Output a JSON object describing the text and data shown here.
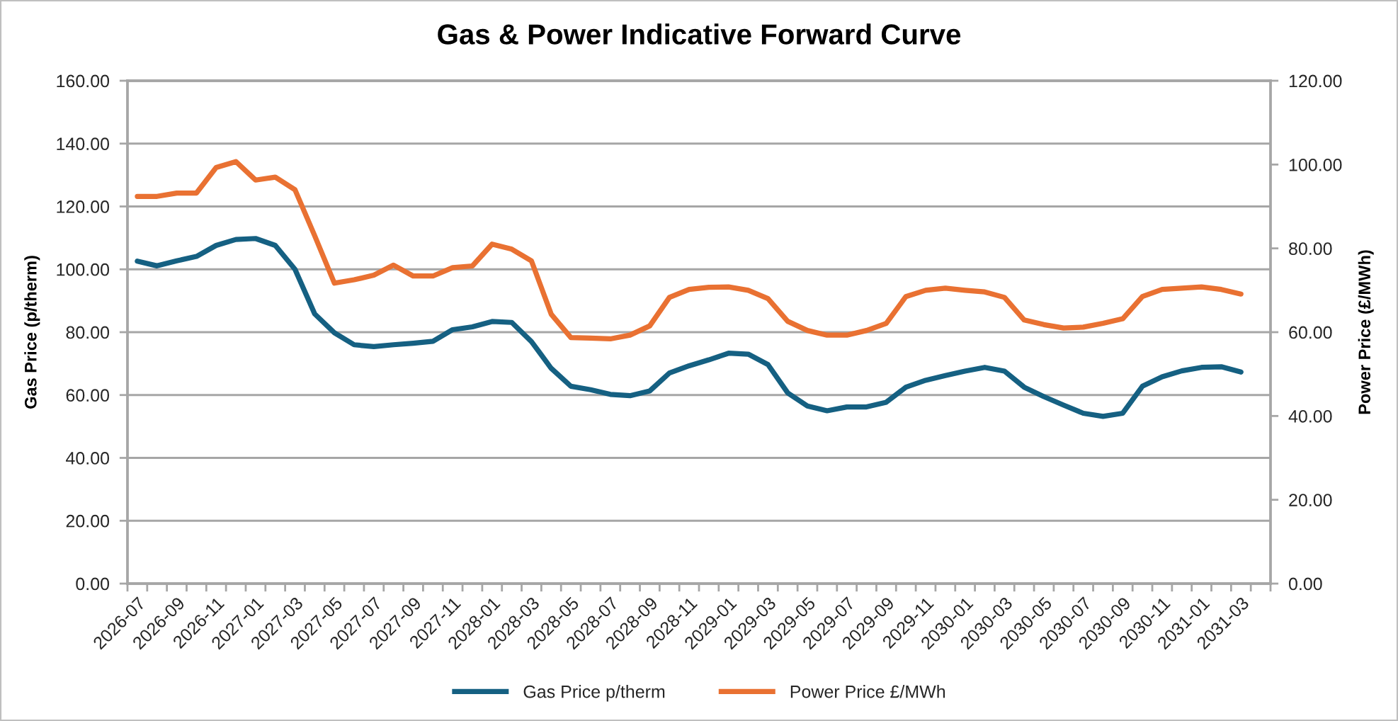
{
  "chart_data": {
    "type": "line",
    "title": "Gas & Power Indicative Forward Curve",
    "ylabel": "Gas Price (p/therm)",
    "y2label": "Power Price (£/MWh)",
    "categories": [
      "2026-07",
      null,
      "2026-09",
      null,
      "2026-11",
      null,
      "2027-01",
      null,
      "2027-03",
      null,
      "2027-05",
      null,
      "2027-07",
      null,
      "2027-09",
      null,
      "2027-11",
      null,
      "2028-01",
      null,
      "2028-03",
      null,
      "2028-05",
      null,
      "2028-07",
      null,
      "2028-09",
      null,
      "2028-11",
      null,
      "2029-01",
      null,
      "2029-03",
      null,
      "2029-05",
      null,
      "2029-07",
      null,
      "2029-09",
      null,
      "2029-11",
      null,
      "2030-01",
      null,
      "2030-03",
      null,
      "2030-05",
      null,
      "2030-07",
      null,
      "2030-09",
      null,
      "2030-11",
      null,
      "2031-01",
      null,
      "2031-03",
      null
    ],
    "series": [
      {
        "name": "Gas Price p/therm",
        "color": "#156082",
        "values": [
          102.6,
          101.1,
          102.7,
          104.1,
          107.6,
          109.5,
          109.8,
          107.6,
          100.0,
          85.8,
          79.8,
          76.0,
          75.4,
          76.0,
          76.5,
          77.1,
          80.8,
          81.7,
          83.4,
          83.1,
          77.0,
          68.5,
          62.8,
          61.7,
          60.2,
          59.8,
          61.3,
          67.0,
          69.3,
          71.2,
          73.3,
          73.0,
          69.7,
          60.7,
          56.5,
          55.0,
          56.2,
          56.2,
          57.7,
          62.5,
          64.7,
          66.2,
          67.6,
          68.8,
          67.6,
          62.5,
          59.5,
          56.8,
          54.2,
          53.2,
          54.2,
          62.8,
          65.8,
          67.7,
          68.8,
          69.0,
          67.3,
          null
        ]
      },
      {
        "name": "Power Price £/MWh",
        "color": "#e97132",
        "axis": "y2",
        "values": [
          92.4,
          92.4,
          93.2,
          93.2,
          99.3,
          100.7,
          96.3,
          97.0,
          94.0,
          83.0,
          71.7,
          72.5,
          73.6,
          76.0,
          73.4,
          73.4,
          75.4,
          75.8,
          81.0,
          79.8,
          77.0,
          64.3,
          58.7,
          58.6,
          58.4,
          59.3,
          61.5,
          68.3,
          70.2,
          70.7,
          70.8,
          70.0,
          68.0,
          62.6,
          60.4,
          59.3,
          59.3,
          60.4,
          62.1,
          68.5,
          70.0,
          70.5,
          70.0,
          69.6,
          68.3,
          62.9,
          61.8,
          61.0,
          61.2,
          62.1,
          63.2,
          68.5,
          70.2,
          70.5,
          70.8,
          70.2,
          69.1,
          null
        ]
      }
    ],
    "ylim": [
      0,
      160
    ],
    "yticks": [
      {
        "value": 0,
        "label": "0.00"
      },
      {
        "value": 20,
        "label": "20.00"
      },
      {
        "value": 40,
        "label": "40.00"
      },
      {
        "value": 60,
        "label": "60.00"
      },
      {
        "value": 80,
        "label": "80.00"
      },
      {
        "value": 100,
        "label": "100.00"
      },
      {
        "value": 120,
        "label": "120.00"
      },
      {
        "value": 140,
        "label": "140.00"
      },
      {
        "value": 160,
        "label": "160.00"
      }
    ],
    "y2lim": [
      0,
      120
    ],
    "y2ticks": [
      {
        "value": 0,
        "label": "0.00"
      },
      {
        "value": 20,
        "label": "20.00"
      },
      {
        "value": 40,
        "label": "40.00"
      },
      {
        "value": 60,
        "label": "60.00"
      },
      {
        "value": 80,
        "label": "80.00"
      },
      {
        "value": 100,
        "label": "100.00"
      },
      {
        "value": 120,
        "label": "120.00"
      }
    ],
    "grid": "y",
    "legend": "bottom"
  }
}
